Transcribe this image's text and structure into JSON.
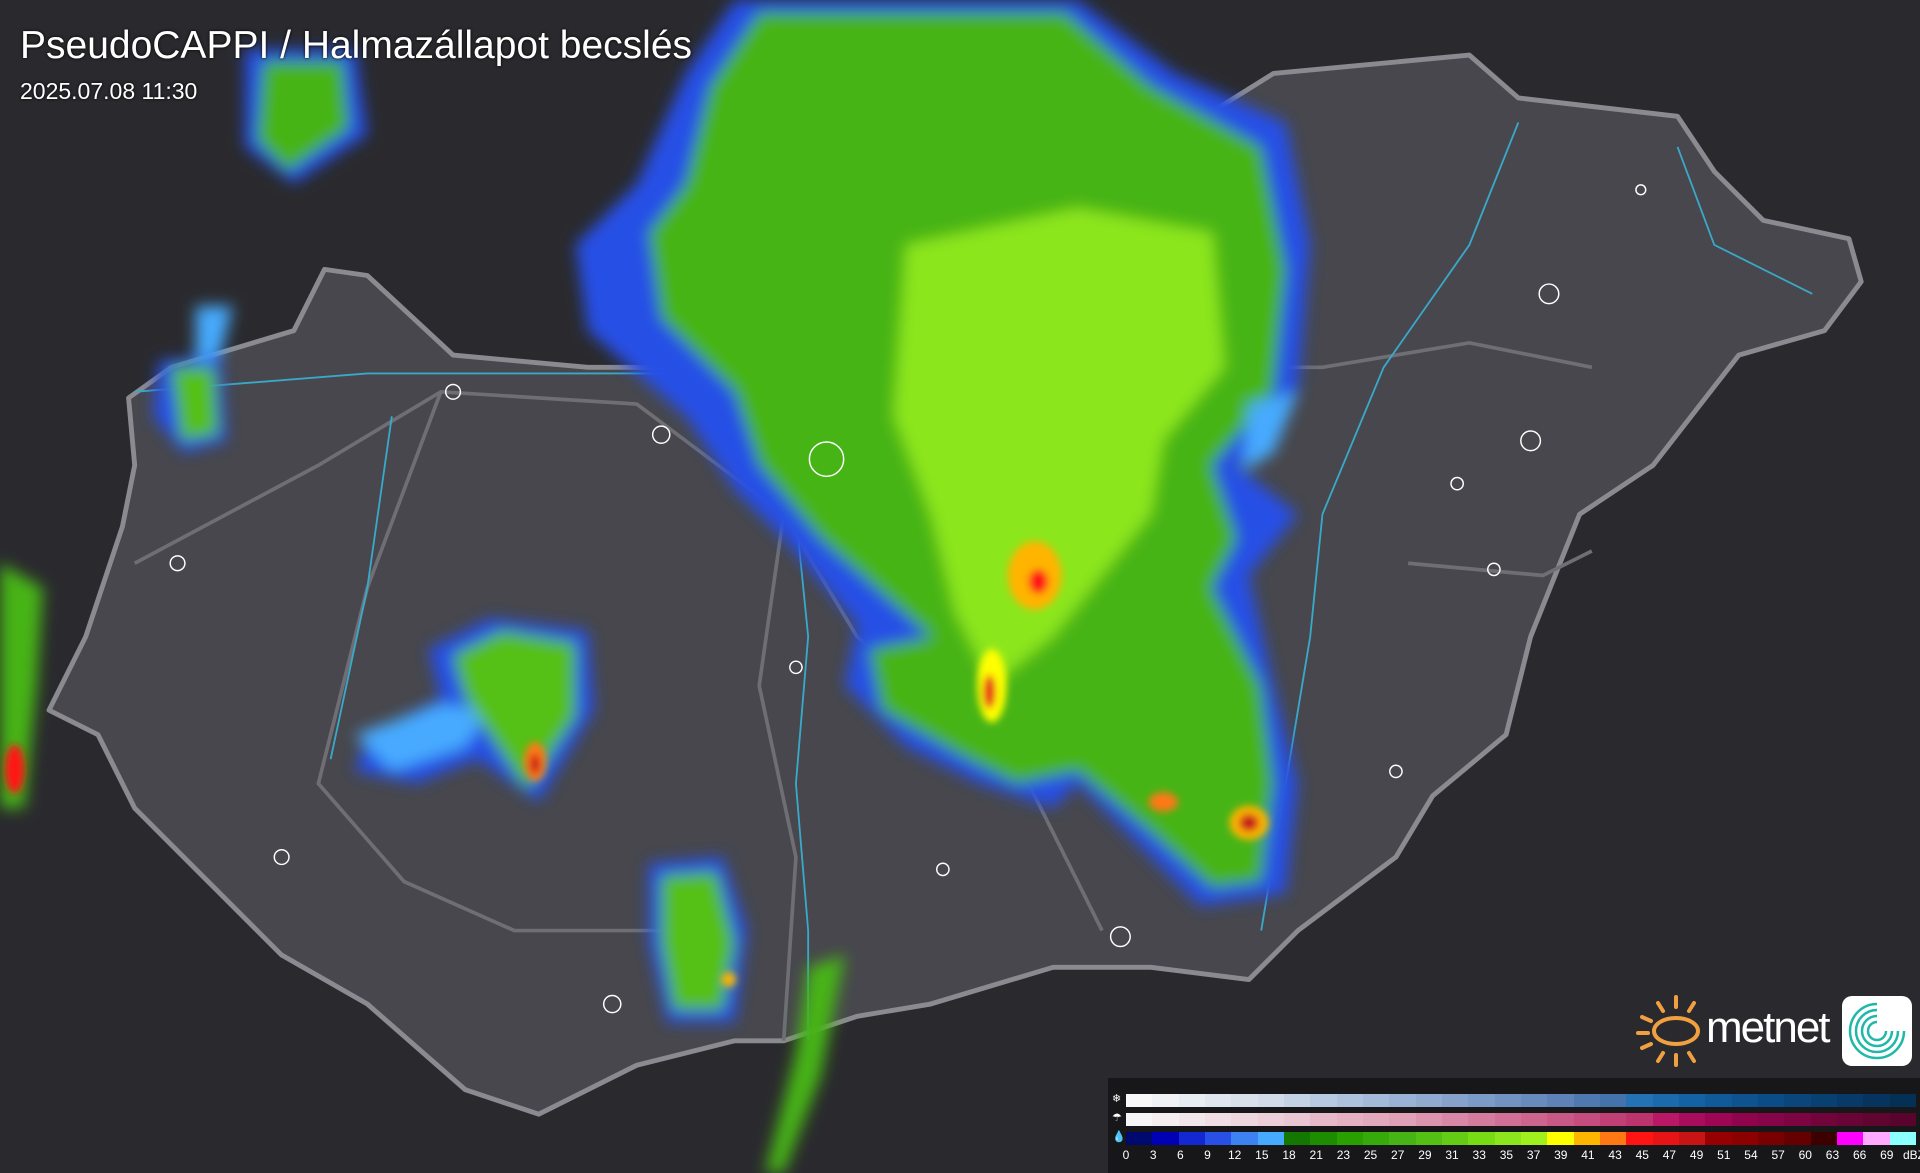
{
  "header": {
    "title": "PseudoCAPPI  / Halmazállapot becslés",
    "timestamp": "2025.07.08 11:30"
  },
  "legend": {
    "unit": "dBZ",
    "icons": {
      "snow": "snowflake-icon",
      "mixed": "sleet-icon",
      "rain": "raindrop-icon"
    },
    "labels": [
      "0",
      "3",
      "6",
      "9",
      "12",
      "15",
      "18",
      "21",
      "23",
      "25",
      "27",
      "29",
      "31",
      "33",
      "35",
      "37",
      "39",
      "41",
      "43",
      "45",
      "47",
      "49",
      "51",
      "54",
      "57",
      "60",
      "63",
      "66",
      "69",
      "dBZ"
    ],
    "snow_colors": [
      "#f8f8f8",
      "#f0f2f6",
      "#e8ecf3",
      "#e0e6f0",
      "#d8e0ec",
      "#d0dae9",
      "#c4d2e6",
      "#b8cae2",
      "#aec2de",
      "#a4bad9",
      "#9ab2d5",
      "#90aad0",
      "#86a2cb",
      "#7c9ac6",
      "#7292c1",
      "#688abc",
      "#5e82b7",
      "#5078b0",
      "#4472aa",
      "#2472b4",
      "#1a6aac",
      "#1462a4",
      "#105a9a",
      "#0e5290",
      "#0c4c86",
      "#0a467c",
      "#084072",
      "#073a68",
      "#06345e",
      "#053056"
    ],
    "mixed_colors": [
      "#f6f6f6",
      "#f4eef0",
      "#f2e6ea",
      "#f0dee4",
      "#eed6de",
      "#ecced8",
      "#eac6d2",
      "#e6b8c8",
      "#e4b0c2",
      "#e2a8bc",
      "#e0a0b6",
      "#dc94ae",
      "#d888a6",
      "#d47c9e",
      "#d07096",
      "#cc648e",
      "#c85886",
      "#c44c7e",
      "#c04076",
      "#bc346e",
      "#b81866",
      "#a80c5c",
      "#9c0654",
      "#90044e",
      "#860448",
      "#7c0442",
      "#72043c",
      "#680436",
      "#600430",
      "#58042c"
    ],
    "rain_colors": [
      "#000a6e",
      "#0000b4",
      "#1428d2",
      "#2850e6",
      "#3c82f0",
      "#46aaff",
      "#147800",
      "#1e8c00",
      "#2aa000",
      "#36aa0a",
      "#46b414",
      "#55c014",
      "#64cc14",
      "#78dc14",
      "#8ce61e",
      "#a0f01e",
      "#ffff00",
      "#ffb400",
      "#ff7814",
      "#ff1414",
      "#e61414",
      "#c81414",
      "#960000",
      "#8c0000",
      "#780000",
      "#640000",
      "#3c0000",
      "#ff00ff",
      "#ffaaff",
      "#8cffff"
    ]
  },
  "logo": {
    "brand": "metnet",
    "sun_color": "#f0a040",
    "icon_color": "#20b8a8"
  },
  "map": {
    "region": "Hungary",
    "background": "#2d2d32",
    "border_color": "#8a8a90",
    "river_color": "#3aa8c8"
  }
}
